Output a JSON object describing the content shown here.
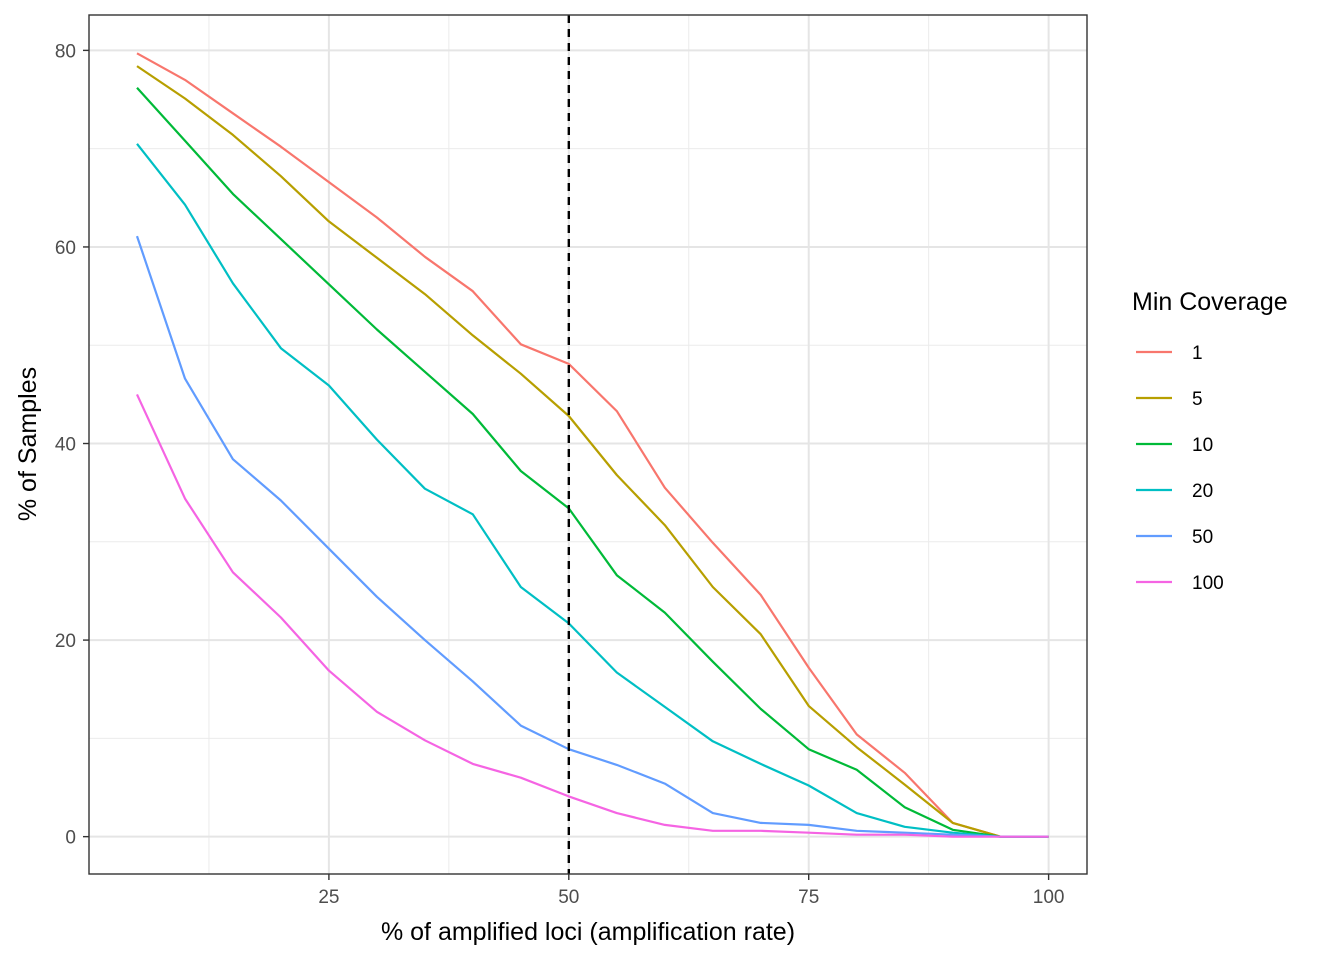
{
  "chart_data": {
    "type": "line",
    "xlabel": "% of amplified loci (amplification rate)",
    "ylabel": "% of Samples",
    "xlim": [
      0,
      104
    ],
    "ylim": [
      -3.8,
      83.6
    ],
    "x_ticks": [
      25,
      50,
      75,
      100
    ],
    "y_ticks": [
      0,
      20,
      40,
      60,
      80
    ],
    "grid": true,
    "vline": {
      "x": 50,
      "style": "dashed",
      "color": "#000000"
    },
    "legend": {
      "title": "Min Coverage",
      "placement": "right"
    },
    "x": [
      5,
      10,
      15,
      20,
      25,
      30,
      35,
      40,
      45,
      50,
      55,
      60,
      65,
      70,
      75,
      80,
      85,
      90,
      95,
      100
    ],
    "series": [
      {
        "name": "1",
        "color": "#F8766D",
        "values": [
          79.7,
          77.0,
          73.6,
          70.2,
          66.6,
          63.0,
          59.0,
          55.5,
          50.1,
          48.1,
          43.3,
          35.5,
          29.9,
          24.6,
          17.2,
          10.4,
          6.5,
          1.4,
          0.0,
          0.0
        ]
      },
      {
        "name": "5",
        "color": "#B79F00",
        "values": [
          78.4,
          75.1,
          71.4,
          67.2,
          62.6,
          58.9,
          55.2,
          51.0,
          47.1,
          42.8,
          36.8,
          31.7,
          25.4,
          20.6,
          13.3,
          9.1,
          5.3,
          1.4,
          0.0,
          0.0
        ]
      },
      {
        "name": "10",
        "color": "#00BA38",
        "values": [
          76.2,
          70.8,
          65.4,
          60.8,
          56.2,
          51.6,
          47.3,
          43.0,
          37.2,
          33.4,
          26.6,
          22.8,
          17.8,
          13.0,
          8.9,
          6.8,
          3.0,
          0.7,
          0.0,
          0.0
        ]
      },
      {
        "name": "20",
        "color": "#00BFC4",
        "values": [
          70.5,
          64.3,
          56.3,
          49.7,
          45.9,
          40.4,
          35.4,
          32.8,
          25.4,
          21.7,
          16.7,
          13.2,
          9.7,
          7.4,
          5.2,
          2.4,
          1.0,
          0.4,
          0.0,
          0.0
        ]
      },
      {
        "name": "50",
        "color": "#619CFF",
        "values": [
          61.1,
          46.6,
          38.4,
          34.2,
          29.3,
          24.4,
          20.0,
          15.8,
          11.3,
          8.9,
          7.3,
          5.4,
          2.4,
          1.4,
          1.2,
          0.6,
          0.4,
          0.2,
          0.0,
          0.0
        ]
      },
      {
        "name": "100",
        "color": "#F564E3",
        "values": [
          45.0,
          34.4,
          26.9,
          22.3,
          16.9,
          12.7,
          9.8,
          7.4,
          6.0,
          4.1,
          2.4,
          1.2,
          0.6,
          0.6,
          0.4,
          0.2,
          0.2,
          0.0,
          0.0,
          0.0
        ]
      }
    ]
  }
}
